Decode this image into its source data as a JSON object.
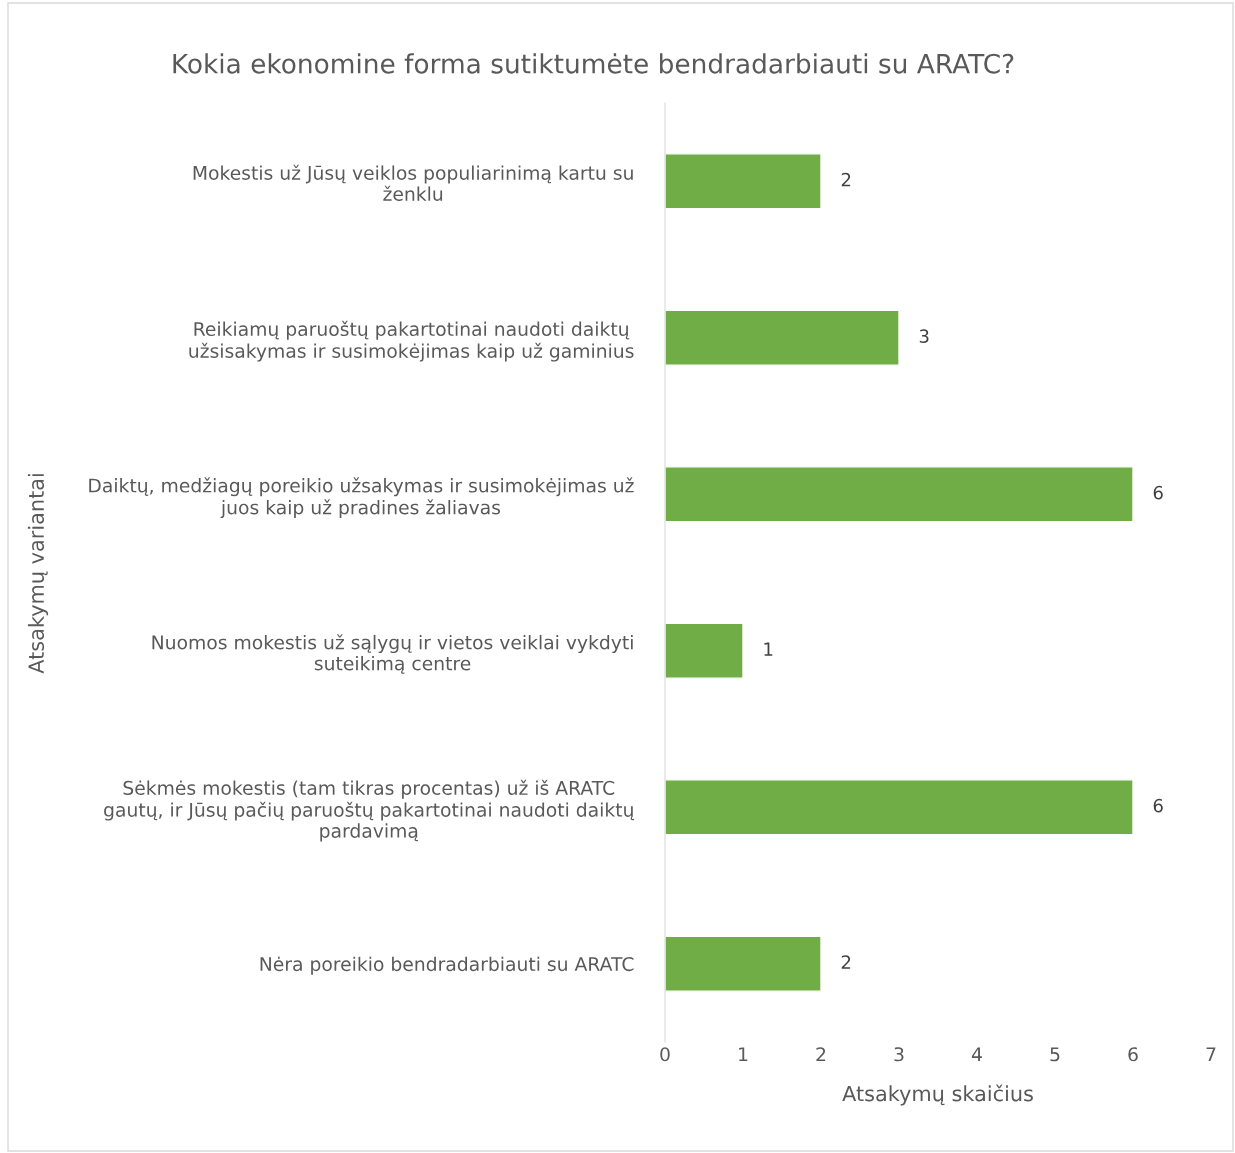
{
  "chart_data": {
    "type": "bar",
    "orientation": "horizontal",
    "title": "Kokia ekonomine forma sutiktumėte bendradarbiauti su ARATC?",
    "xlabel": "Atsakymų skaičius",
    "ylabel": "Atsakymų variantai",
    "categories": [
      "Mokestis už Jūsų veiklos populiarinimą kartu su\nženklu",
      "Reikiamų paruoštų pakartotinai naudoti daiktų\nužsisakymas ir susimokėjimas kaip už gaminius",
      "Daiktų, medžiagų poreikio užsakymas ir susimokėjimas už\njuos kaip už pradines žaliavas",
      "Nuomos mokestis už sąlygų ir vietos veiklai vykdyti\nsuteikimą centre",
      "Sėkmės mokestis (tam tikras procentas) už iš ARATC\ngautų, ir Jūsų pačių paruoštų pakartotinai naudoti daiktų\npardavimą",
      "Nėra poreikio bendradarbiauti su ARATC"
    ],
    "values": [
      2,
      3,
      6,
      1,
      6,
      2
    ],
    "color": "#70ad47",
    "xlim": [
      0,
      7
    ],
    "xticks": [
      0,
      1,
      2,
      3,
      4,
      5,
      6,
      7
    ],
    "data_labels": true,
    "grid": false,
    "legend": false
  }
}
